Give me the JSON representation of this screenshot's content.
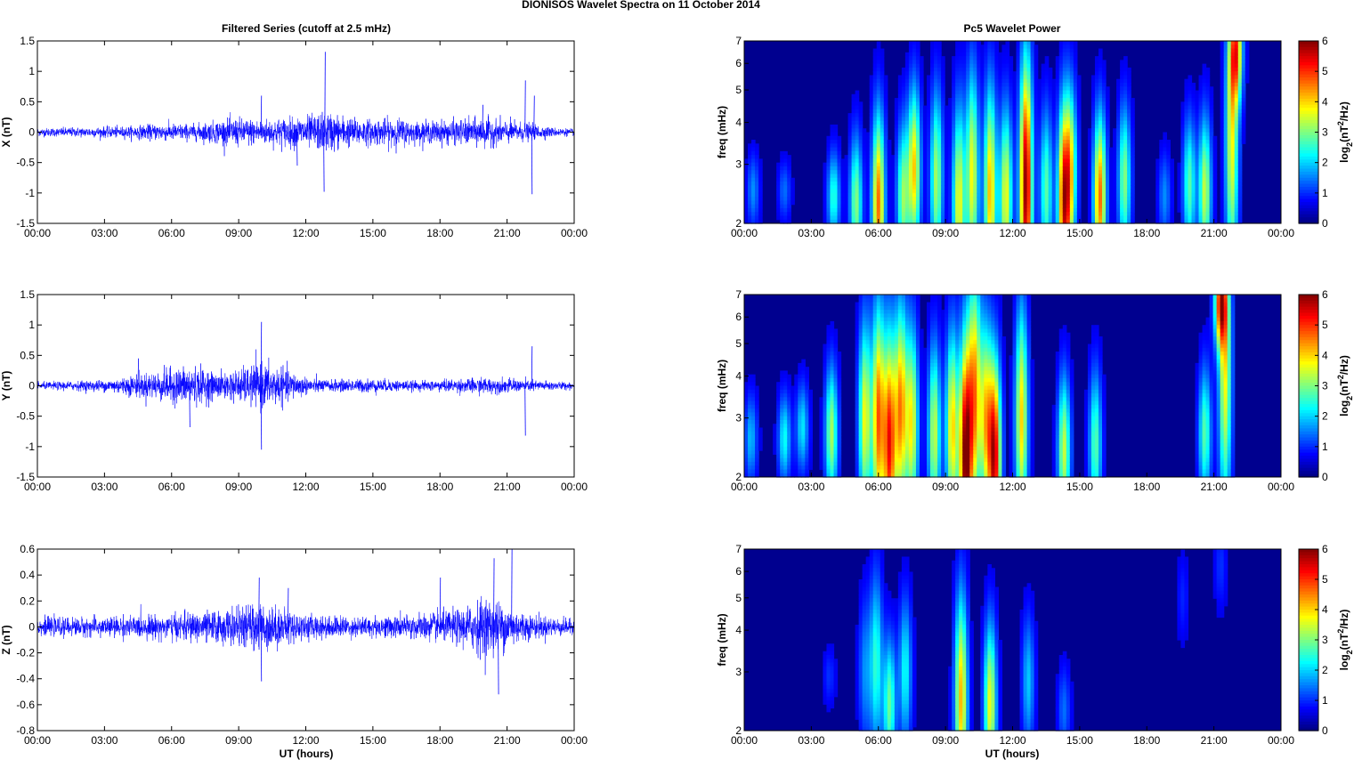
{
  "figure_title": "DIONISOS Wavelet Spectra on 11 October   2014",
  "left_column_title": "Filtered Series (cutoff at 2.5 mHz)",
  "right_column_title": "Pc5 Wavelet Power",
  "xlabel": "UT (hours)",
  "time_ticks": [
    "00:00",
    "03:00",
    "06:00",
    "09:00",
    "12:00",
    "15:00",
    "18:00",
    "21:00",
    "00:00"
  ],
  "colorbar_label": "log2(nT2/Hz)",
  "colorbar_ticks": [
    "0",
    "1",
    "2",
    "3",
    "4",
    "5",
    "6"
  ],
  "freq_label": "freq (mHz)",
  "colors": {
    "trace": "#0000ff",
    "background_map": "#00008f"
  },
  "chart_data": [
    {
      "type": "line",
      "panel": "X",
      "ylabel": "X (nT)",
      "ylim": [
        -1.5,
        1.5
      ],
      "yticks": [
        "1.5",
        "1",
        "0.5",
        "0",
        "-0.5",
        "-1",
        "-1.5"
      ],
      "x_range_hours": [
        0,
        24
      ],
      "noise_amplitude_profile": [
        [
          0,
          0.07
        ],
        [
          4,
          0.1
        ],
        [
          5.5,
          0.15
        ],
        [
          7,
          0.14
        ],
        [
          8,
          0.2
        ],
        [
          9,
          0.25
        ],
        [
          10,
          0.22
        ],
        [
          11,
          0.25
        ],
        [
          12,
          0.28
        ],
        [
          13,
          0.35
        ],
        [
          14,
          0.25
        ],
        [
          15,
          0.22
        ],
        [
          16,
          0.25
        ],
        [
          17,
          0.18
        ],
        [
          18,
          0.2
        ],
        [
          19,
          0.22
        ],
        [
          20,
          0.25
        ],
        [
          21,
          0.2
        ],
        [
          22,
          0.15
        ],
        [
          23,
          0.08
        ],
        [
          24,
          0.06
        ]
      ],
      "spikes": [
        [
          12.85,
          1.32
        ],
        [
          12.8,
          -0.98
        ],
        [
          21.8,
          0.85
        ],
        [
          22.1,
          -1.02
        ],
        [
          22.2,
          0.6
        ],
        [
          19.9,
          0.45
        ],
        [
          10.0,
          0.6
        ],
        [
          11.6,
          -0.55
        ]
      ]
    },
    {
      "type": "line",
      "panel": "Y",
      "ylabel": "Y (nT)",
      "ylim": [
        -1.5,
        1.5
      ],
      "yticks": [
        "1.5",
        "1",
        "0.5",
        "0",
        "-0.5",
        "-1",
        "-1.5"
      ],
      "x_range_hours": [
        0,
        24
      ],
      "noise_amplitude_profile": [
        [
          0,
          0.06
        ],
        [
          3,
          0.1
        ],
        [
          4.5,
          0.2
        ],
        [
          6,
          0.3
        ],
        [
          7,
          0.35
        ],
        [
          8,
          0.22
        ],
        [
          9,
          0.28
        ],
        [
          10,
          0.4
        ],
        [
          11,
          0.3
        ],
        [
          12,
          0.15
        ],
        [
          13,
          0.1
        ],
        [
          15,
          0.12
        ],
        [
          17,
          0.08
        ],
        [
          18,
          0.1
        ],
        [
          20,
          0.14
        ],
        [
          21,
          0.12
        ],
        [
          22,
          0.1
        ],
        [
          24,
          0.06
        ]
      ],
      "spikes": [
        [
          10.0,
          1.05
        ],
        [
          10.0,
          -1.05
        ],
        [
          21.8,
          -0.82
        ],
        [
          22.1,
          0.65
        ],
        [
          6.8,
          -0.68
        ],
        [
          4.5,
          0.45
        ]
      ]
    },
    {
      "type": "line",
      "panel": "Z",
      "ylabel": "Z (nT)",
      "ylim": [
        -0.8,
        0.6
      ],
      "yticks": [
        "0.6",
        "0.4",
        "0.2",
        "0",
        "-0.2",
        "-0.4",
        "-0.6",
        "-0.8"
      ],
      "x_range_hours": [
        0,
        24
      ],
      "noise_amplitude_profile": [
        [
          0,
          0.07
        ],
        [
          3,
          0.08
        ],
        [
          6,
          0.1
        ],
        [
          7,
          0.12
        ],
        [
          9,
          0.15
        ],
        [
          10,
          0.2
        ],
        [
          11,
          0.15
        ],
        [
          12,
          0.1
        ],
        [
          14,
          0.08
        ],
        [
          16,
          0.09
        ],
        [
          18,
          0.12
        ],
        [
          19,
          0.15
        ],
        [
          20,
          0.25
        ],
        [
          21,
          0.18
        ],
        [
          22,
          0.1
        ],
        [
          24,
          0.06
        ]
      ],
      "spikes": [
        [
          9.9,
          0.38
        ],
        [
          10.0,
          -0.42
        ],
        [
          20.4,
          0.53
        ],
        [
          20.6,
          -0.52
        ],
        [
          21.2,
          0.6
        ],
        [
          18.0,
          0.38
        ],
        [
          11.2,
          0.3
        ]
      ]
    },
    {
      "type": "heatmap",
      "panel": "X",
      "ylabel": "freq (mHz)",
      "ylim_mHz": [
        2,
        7
      ],
      "yticks": [
        "7",
        "6",
        "5",
        "4",
        "3",
        "2"
      ],
      "yscale": "log",
      "zlim": [
        0,
        6
      ],
      "x_range_hours": [
        0,
        24
      ],
      "blobs": [
        {
          "t": 0.4,
          "f": 2.5,
          "amp": 1.2,
          "ext": 0.25
        },
        {
          "t": 1.8,
          "f": 2.5,
          "amp": 1.0,
          "ext": 0.2
        },
        {
          "t": 4.0,
          "f": 2.4,
          "amp": 2.2,
          "ext": 0.3
        },
        {
          "t": 5.0,
          "f": 2.3,
          "amp": 2.8,
          "ext": 0.45
        },
        {
          "t": 6.0,
          "f": 2.3,
          "amp": 4.5,
          "ext": 0.6
        },
        {
          "t": 7.1,
          "f": 2.4,
          "amp": 2.8,
          "ext": 0.5
        },
        {
          "t": 7.6,
          "f": 2.9,
          "amp": 3.8,
          "ext": 0.55
        },
        {
          "t": 8.6,
          "f": 2.7,
          "amp": 3.0,
          "ext": 0.6
        },
        {
          "t": 9.6,
          "f": 2.3,
          "amp": 3.5,
          "ext": 0.65
        },
        {
          "t": 10.2,
          "f": 2.8,
          "amp": 3.5,
          "ext": 0.7
        },
        {
          "t": 11.0,
          "f": 2.5,
          "amp": 4.0,
          "ext": 0.7
        },
        {
          "t": 11.7,
          "f": 2.4,
          "amp": 3.5,
          "ext": 0.6
        },
        {
          "t": 12.6,
          "f": 2.6,
          "amp": 6.0,
          "ext": 0.85
        },
        {
          "t": 13.5,
          "f": 2.5,
          "amp": 2.5,
          "ext": 0.55
        },
        {
          "t": 14.3,
          "f": 2.3,
          "amp": 5.0,
          "ext": 0.65
        },
        {
          "t": 14.6,
          "f": 2.9,
          "amp": 3.0,
          "ext": 0.55
        },
        {
          "t": 15.9,
          "f": 2.4,
          "amp": 4.5,
          "ext": 0.55
        },
        {
          "t": 17.0,
          "f": 2.7,
          "amp": 2.8,
          "ext": 0.5
        },
        {
          "t": 18.8,
          "f": 2.4,
          "amp": 1.2,
          "ext": 0.3
        },
        {
          "t": 19.9,
          "f": 2.6,
          "amp": 2.5,
          "ext": 0.45
        },
        {
          "t": 20.6,
          "f": 2.5,
          "amp": 3.2,
          "ext": 0.5
        },
        {
          "t": 21.8,
          "f": 3.5,
          "amp": 3.5,
          "ext": 0.9
        },
        {
          "t": 22.0,
          "f": 6.5,
          "amp": 4.0,
          "ext": 0.35
        }
      ]
    },
    {
      "type": "heatmap",
      "panel": "Y",
      "ylabel": "freq (mHz)",
      "ylim_mHz": [
        2,
        7
      ],
      "yticks": [
        "7",
        "6",
        "5",
        "4",
        "3",
        "2"
      ],
      "yscale": "log",
      "zlim": [
        0,
        6
      ],
      "x_range_hours": [
        0,
        24
      ],
      "blobs": [
        {
          "t": 0.3,
          "f": 2.6,
          "amp": 1.5,
          "ext": 0.3
        },
        {
          "t": 1.8,
          "f": 2.6,
          "amp": 2.0,
          "ext": 0.3
        },
        {
          "t": 2.6,
          "f": 2.8,
          "amp": 1.8,
          "ext": 0.3
        },
        {
          "t": 3.9,
          "f": 2.7,
          "amp": 3.0,
          "ext": 0.45
        },
        {
          "t": 5.4,
          "f": 3.0,
          "amp": 3.5,
          "ext": 0.65
        },
        {
          "t": 6.0,
          "f": 3.0,
          "amp": 4.5,
          "ext": 0.75
        },
        {
          "t": 6.5,
          "f": 2.5,
          "amp": 5.0,
          "ext": 0.75
        },
        {
          "t": 7.0,
          "f": 3.2,
          "amp": 4.2,
          "ext": 0.7
        },
        {
          "t": 7.5,
          "f": 2.9,
          "amp": 3.5,
          "ext": 0.65
        },
        {
          "t": 8.5,
          "f": 2.7,
          "amp": 3.2,
          "ext": 0.6
        },
        {
          "t": 9.3,
          "f": 2.8,
          "amp": 3.8,
          "ext": 0.65
        },
        {
          "t": 9.9,
          "f": 2.3,
          "amp": 6.0,
          "ext": 0.8
        },
        {
          "t": 10.3,
          "f": 3.6,
          "amp": 4.0,
          "ext": 0.8
        },
        {
          "t": 10.8,
          "f": 3.0,
          "amp": 3.5,
          "ext": 0.65
        },
        {
          "t": 11.2,
          "f": 2.3,
          "amp": 5.5,
          "ext": 0.65
        },
        {
          "t": 12.4,
          "f": 3.0,
          "amp": 3.8,
          "ext": 0.75
        },
        {
          "t": 14.3,
          "f": 2.4,
          "amp": 3.2,
          "ext": 0.5
        },
        {
          "t": 15.7,
          "f": 2.5,
          "amp": 2.5,
          "ext": 0.5
        },
        {
          "t": 20.6,
          "f": 2.7,
          "amp": 2.5,
          "ext": 0.45
        },
        {
          "t": 21.5,
          "f": 4.0,
          "amp": 3.5,
          "ext": 0.9
        },
        {
          "t": 21.3,
          "f": 6.6,
          "amp": 4.5,
          "ext": 0.3
        }
      ]
    },
    {
      "type": "heatmap",
      "panel": "Z",
      "ylabel": "freq (mHz)",
      "ylim_mHz": [
        2,
        7
      ],
      "yticks": [
        "7",
        "6",
        "5",
        "4",
        "3",
        "2"
      ],
      "yscale": "log",
      "zlim": [
        0,
        6
      ],
      "x_range_hours": [
        0,
        24
      ],
      "blobs": [
        {
          "t": 3.8,
          "f": 2.9,
          "amp": 0.6,
          "ext": 0.2
        },
        {
          "t": 5.4,
          "f": 3.0,
          "amp": 1.2,
          "ext": 0.5
        },
        {
          "t": 5.9,
          "f": 3.2,
          "amp": 2.2,
          "ext": 0.6
        },
        {
          "t": 6.5,
          "f": 2.4,
          "amp": 2.6,
          "ext": 0.45
        },
        {
          "t": 7.2,
          "f": 3.0,
          "amp": 2.0,
          "ext": 0.5
        },
        {
          "t": 9.7,
          "f": 2.5,
          "amp": 4.0,
          "ext": 0.7
        },
        {
          "t": 11.0,
          "f": 2.4,
          "amp": 3.5,
          "ext": 0.55
        },
        {
          "t": 12.7,
          "f": 2.8,
          "amp": 1.6,
          "ext": 0.45
        },
        {
          "t": 14.3,
          "f": 2.3,
          "amp": 1.0,
          "ext": 0.3
        },
        {
          "t": 19.6,
          "f": 5.0,
          "amp": 0.5,
          "ext": 0.3
        },
        {
          "t": 21.3,
          "f": 6.2,
          "amp": 0.6,
          "ext": 0.3
        }
      ]
    }
  ]
}
